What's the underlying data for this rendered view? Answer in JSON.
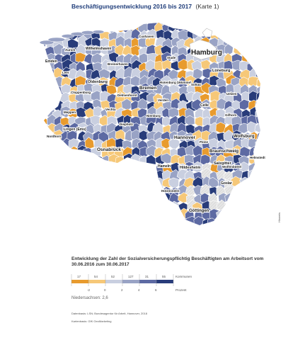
{
  "header": {
    "title": "Beschäftigungsentwicklung 2016 bis 2017",
    "subtitle": "(Karte 1)"
  },
  "map": {
    "colors": {
      "orange": "#e89b2e",
      "light_orange": "#f6c878",
      "light_blue": "#c9cfe0",
      "mid_blue": "#99a3c5",
      "dark_blue": "#5d6aa3",
      "navy": "#283c7a",
      "hatch": "#e0e0e0",
      "border": "#ffffff"
    },
    "cities": [
      "Hamburg",
      "Wilhelmshaven",
      "Emden",
      "Aurich",
      "Bremerhaven",
      "Oldenburg",
      "Bremen",
      "Delmenhorst",
      "Cloppenburg",
      "Vechta",
      "Meppen",
      "Nordhorn",
      "Lingen (Ems)",
      "Osnabrück",
      "Lüneburg",
      "Celle",
      "Gifhorn",
      "Wolfsburg",
      "Hannover",
      "Braunschweig",
      "Salzgitter",
      "Hildesheim",
      "Hameln",
      "Wolfenbüttel",
      "Helmstedt",
      "Goslar",
      "Holzminden",
      "Göttingen",
      "Nienburg",
      "Verden",
      "Stade",
      "Cuxhaven",
      "Rotenburg (Wümme)",
      "Uelzen",
      "Peine",
      "Leer",
      "Soltau",
      "Diepholz"
    ]
  },
  "credit": "Hinweis",
  "legend": {
    "title": "Entwicklung der Zahl der Sozialversicherungspflichtig Beschäftigten am Arbeitsort vom 30.06.2016 zum 30.06.2017",
    "counts": [
      "17",
      "54",
      "52",
      "127",
      "31",
      "55"
    ],
    "counts_label": "Kommunen",
    "scale_labels": [
      "-2",
      "0",
      "2",
      "4",
      "6"
    ],
    "scale_unit": "Prozent",
    "statewide_label": "Niedersachsen: 2,6",
    "source_line1": "Datenbasis: LSN; Bundesagentur für Arbeit, Hannover, 2018",
    "source_line2": "Kartenbasis: GfK GeoMarketing"
  }
}
